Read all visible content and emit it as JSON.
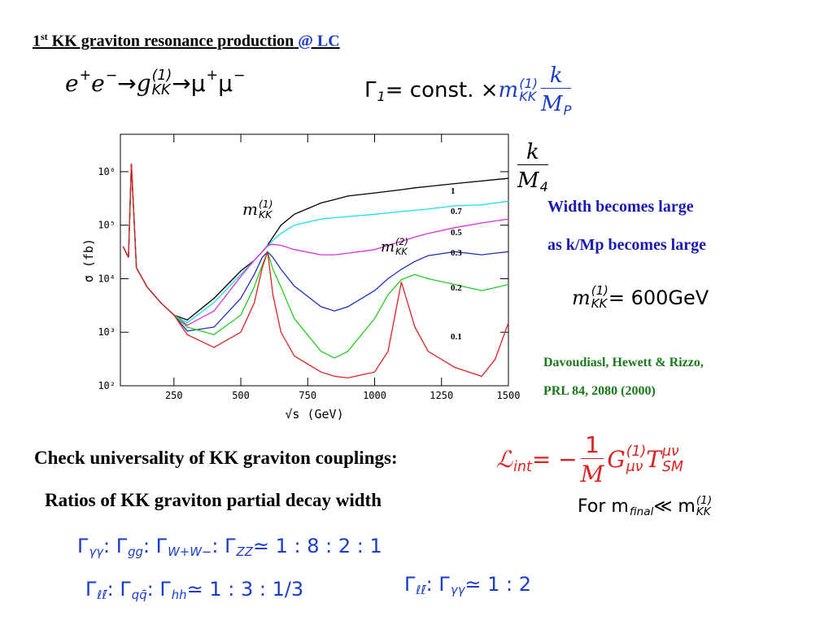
{
  "header": {
    "num": "1",
    "sup": "st",
    "title": " KK graviton resonance production",
    "link": " @ LC"
  },
  "process_eq": [
    {
      "text": "e",
      "sup": "+"
    },
    {
      "text": "e",
      "sup": "−"
    },
    {
      "text": " → "
    },
    {
      "text": "g",
      "sup": "(1)",
      "sub": "KK"
    },
    {
      "text": " → "
    },
    {
      "text": "μ",
      "sup": "+"
    },
    {
      "text": "μ",
      "sup": "−"
    }
  ],
  "width_eq": [
    {
      "text": "Γ",
      "sub": "1"
    },
    {
      "text": " = const. × "
    },
    {
      "text": "m",
      "sup": "(1)",
      "sub": "KK",
      "color": "#1a3ccc"
    },
    {
      "num": [
        {
          "text": "k"
        }
      ],
      "den": [
        {
          "text": "M",
          "sub": "P"
        }
      ],
      "color": "#1a3ccc"
    }
  ],
  "chart_data": {
    "type": "line",
    "x_label": "√s (GeV)",
    "y_label": "σ (fb)",
    "legend_title": [
      {
        "num": [
          {
            "text": "k"
          }
        ],
        "den": [
          {
            "text": "M",
            "sub": "4"
          }
        ]
      }
    ],
    "annotations": [
      [
        {
          "text": "m",
          "sup": "(1)",
          "sub": "KK"
        }
      ],
      [
        {
          "text": "m",
          "sup": "(2)",
          "sub": "KK"
        }
      ]
    ],
    "log_y": true,
    "xlim": [
      50,
      1500
    ],
    "ylim": [
      100,
      5000000
    ],
    "xticks": [
      250,
      500,
      750,
      1000,
      1250,
      1500
    ],
    "yticks": [
      {
        "value": 100,
        "label": "10²"
      },
      {
        "value": 1000,
        "label": "10³"
      },
      {
        "value": 10000,
        "label": "10⁴"
      },
      {
        "value": 100000,
        "label": "10⁵"
      },
      {
        "value": 1000000,
        "label": "10⁶"
      }
    ],
    "x": [
      60,
      80,
      91,
      110,
      150,
      200,
      250,
      300,
      400,
      500,
      550,
      580,
      600,
      620,
      650,
      700,
      800,
      850,
      900,
      1000,
      1050,
      1100,
      1150,
      1200,
      1300,
      1400,
      1450,
      1500
    ],
    "series": [
      {
        "name": "1",
        "color": "#000000",
        "values": [
          40000,
          25000,
          1400000,
          16000,
          7000,
          3600,
          2100,
          1700,
          4300,
          14000,
          22000,
          32000,
          42000,
          60000,
          100000,
          160000,
          260000,
          300000,
          350000,
          400000,
          430000,
          460000,
          500000,
          530000,
          600000,
          670000,
          710000,
          750000
        ]
      },
      {
        "name": "0.7",
        "color": "#19e0f0",
        "values": [
          40000,
          25000,
          1400000,
          16000,
          7000,
          3600,
          2100,
          1500,
          3600,
          12000,
          22000,
          32000,
          40000,
          52000,
          70000,
          100000,
          130000,
          138000,
          145000,
          160000,
          170000,
          180000,
          190000,
          200000,
          230000,
          240000,
          260000,
          280000
        ]
      },
      {
        "name": "0.5",
        "color": "#e030e0",
        "values": [
          40000,
          25000,
          1400000,
          16000,
          7000,
          3600,
          2100,
          1350,
          2500,
          11000,
          22000,
          32000,
          42000,
          44000,
          42000,
          35000,
          28000,
          28000,
          30000,
          35000,
          42000,
          50000,
          60000,
          70000,
          90000,
          110000,
          120000,
          130000
        ]
      },
      {
        "name": "0.3",
        "color": "#2030c0",
        "values": [
          40000,
          25000,
          1400000,
          16000,
          7000,
          3600,
          2100,
          1050,
          1250,
          4300,
          12000,
          25000,
          32000,
          25000,
          15000,
          7300,
          3000,
          2500,
          3000,
          6000,
          10000,
          15000,
          21000,
          27000,
          32000,
          28000,
          30000,
          32000
        ]
      },
      {
        "name": "0.2",
        "color": "#20d020",
        "values": [
          40000,
          25000,
          1400000,
          16000,
          7000,
          3600,
          2100,
          1250,
          900,
          2100,
          7000,
          18000,
          32000,
          15000,
          7000,
          1800,
          440,
          330,
          440,
          1800,
          5000,
          9600,
          12000,
          10000,
          7800,
          6000,
          6800,
          7800
        ]
      },
      {
        "name": "0.1",
        "color": "#e02020",
        "values": [
          40000,
          25000,
          1400000,
          16000,
          7000,
          3600,
          2100,
          900,
          520,
          1000,
          3500,
          16000,
          32000,
          5000,
          1000,
          360,
          180,
          150,
          140,
          180,
          440,
          8700,
          1260,
          440,
          220,
          150,
          310,
          1500
        ]
      }
    ]
  },
  "notes": {
    "line1": "Width becomes large",
    "line2": "as k/Mp becomes large"
  },
  "mass_eq": [
    {
      "text": "m",
      "sup": "(1)",
      "sub": "KK"
    },
    {
      "text": " = 600GeV"
    }
  ],
  "citation": {
    "line1": "Davoudiasl, Hewett & Rizzo,",
    "line2": "PRL 84, 2080 (2000)"
  },
  "check": "Check universality of KK graviton couplings:",
  "lagrangian_eq": [
    {
      "text": "ℒ",
      "sub": "int"
    },
    {
      "text": " = −"
    },
    {
      "num": [
        {
          "text": "1"
        }
      ],
      "den": [
        {
          "text": "M"
        }
      ]
    },
    {
      "text": "G",
      "sup": "(1)",
      "sub": "μν"
    },
    {
      "text": "T",
      "sup": "μν",
      "sub": "SM"
    }
  ],
  "ratios_heading": "Ratios of KK graviton partial decay width",
  "condition_eq": [
    {
      "text": "For m",
      "sub": "final"
    },
    {
      "text": " ≪ m",
      "sup": "(1)",
      "sub": "KK"
    }
  ],
  "ratio_eq1": [
    {
      "text": "Γ",
      "sub": "γγ"
    },
    {
      "text": " : Γ",
      "sub": "gg"
    },
    {
      "text": " : Γ",
      "sub": "W+W−"
    },
    {
      "text": " : Γ",
      "sub": "ZZ"
    },
    {
      "text": " ≃ 1 : 8 : 2 : 1"
    }
  ],
  "ratio_eq2": [
    {
      "text": "Γ",
      "sub": "ℓℓ̄"
    },
    {
      "text": " : Γ",
      "sub": "qq̄"
    },
    {
      "text": " : Γ",
      "sub": "hh"
    },
    {
      "text": " ≃ 1 : 3 : 1/3"
    }
  ],
  "ratio_eq3": [
    {
      "text": "Γ",
      "sub": "ℓℓ̄"
    },
    {
      "text": " : Γ",
      "sub": "γγ"
    },
    {
      "text": " ≃ 1 : 2"
    }
  ]
}
